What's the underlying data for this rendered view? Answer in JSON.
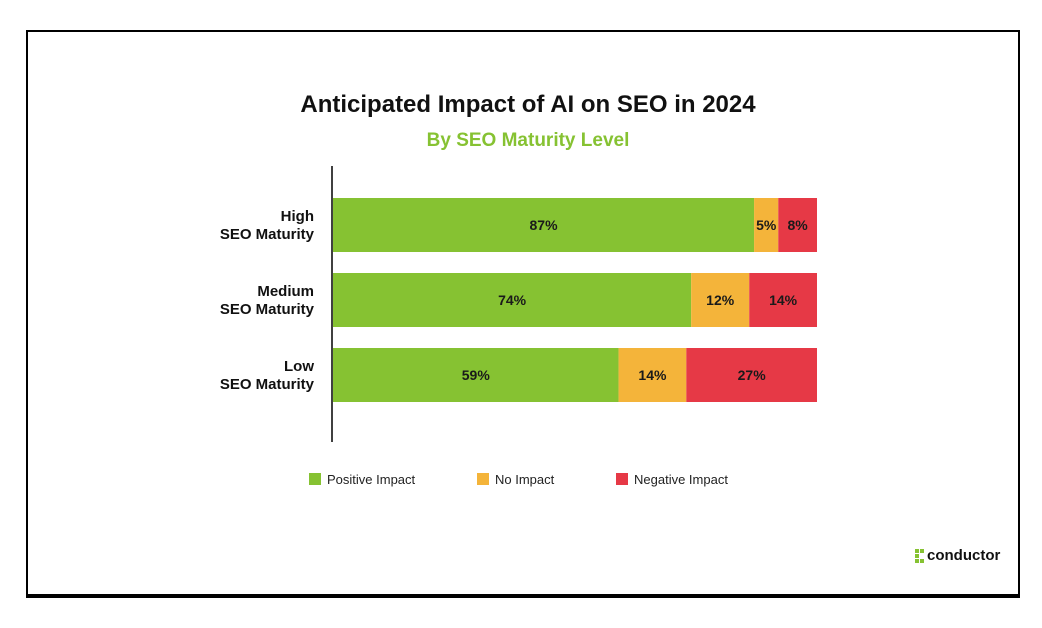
{
  "chart_data": {
    "type": "bar",
    "orientation": "horizontal",
    "stacked": true,
    "title": "Anticipated Impact of AI on SEO in 2024",
    "subtitle": "By SEO Maturity Level",
    "categories": [
      [
        "High",
        "SEO Maturity"
      ],
      [
        "Medium",
        "SEO Maturity"
      ],
      [
        "Low",
        "SEO Maturity"
      ]
    ],
    "series": [
      {
        "name": "Positive Impact",
        "values": [
          87,
          74,
          59
        ],
        "labels": [
          "87%",
          "74%",
          "59%"
        ],
        "color": "#86c232"
      },
      {
        "name": "No Impact",
        "values": [
          5,
          12,
          14
        ],
        "labels": [
          "5%",
          "12%",
          "14%"
        ],
        "color": "#f4b43a"
      },
      {
        "name": "Negative Impact",
        "values": [
          8,
          14,
          27
        ],
        "labels": [
          "8%",
          "14%",
          "27%"
        ],
        "color": "#e63946"
      }
    ],
    "xlim": [
      0,
      100
    ],
    "grid": false,
    "legend_position": "bottom"
  },
  "colors": {
    "title": "#111111",
    "subtitle": "#86c232",
    "axis": "#000000"
  },
  "brand": {
    "name": "conductor",
    "icon": "conductor-logo-icon"
  }
}
